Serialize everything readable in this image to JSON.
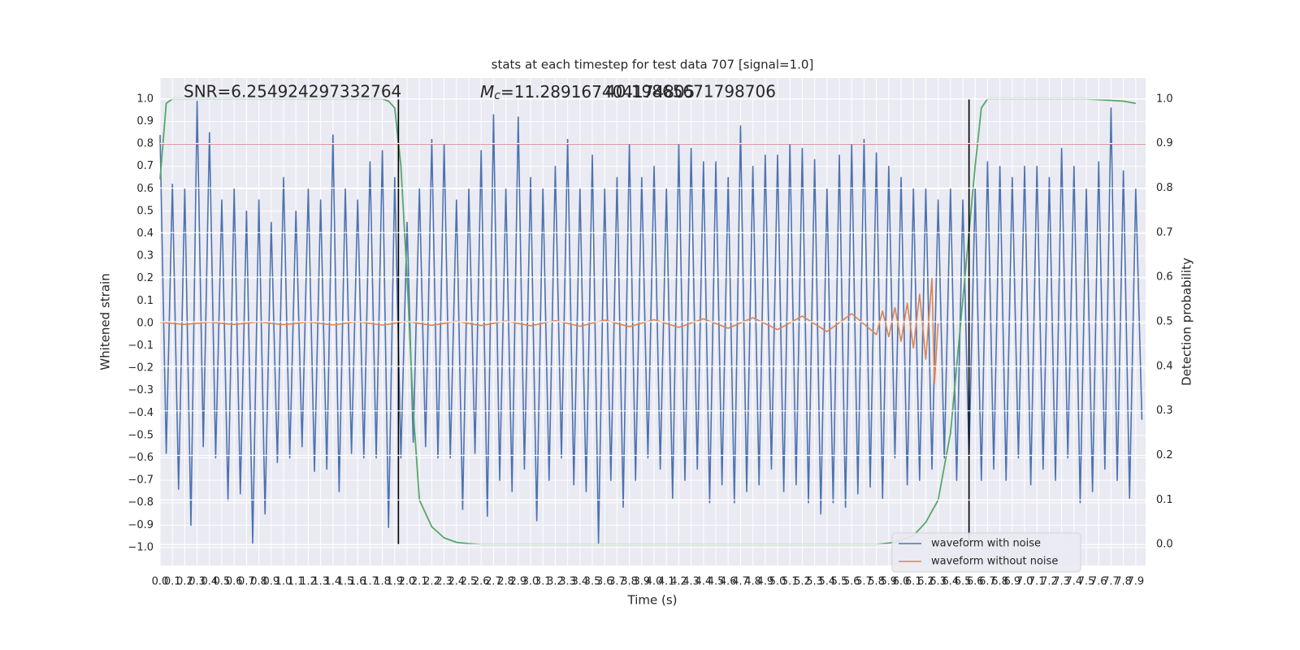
{
  "chart_data": {
    "type": "line",
    "title": "stats at each timestep for test data 707 [signal=1.0]",
    "xlabel": "Time (s)",
    "ylabel": "Whitened strain",
    "y2label": "Detection probability",
    "grid": true,
    "legend": "lower right",
    "annotations": [
      {
        "text": "SNR=6.254924297332764"
      },
      {
        "symbol": "M",
        "subscript": "c",
        "text": "=11.289167404174805"
      },
      {
        "text": "40.19865671798706"
      }
    ],
    "xlim": [
      0,
      7.98
    ],
    "ylim": [
      -1.08,
      1.094
    ],
    "y2lim": [
      -0.047,
      1.047
    ],
    "xticks": [
      {
        "value": 0,
        "label": "0.0"
      },
      0.1,
      0.2,
      0.3,
      0.4,
      0.5,
      0.6,
      0.7,
      0.8,
      0.9,
      {
        "value": 1,
        "label": "1.0"
      },
      1.1,
      1.2,
      1.3,
      1.4,
      1.5,
      1.6,
      1.7,
      1.8,
      1.9,
      {
        "value": 2,
        "label": "2.0"
      },
      2.1,
      2.2,
      2.3,
      2.4,
      2.5,
      2.6,
      2.7,
      2.8,
      2.9,
      {
        "value": 3,
        "label": "3.0"
      },
      3.1,
      3.2,
      3.3,
      3.4,
      3.5,
      3.6,
      3.7,
      3.8,
      3.9,
      {
        "value": 4,
        "label": "4.0"
      },
      4.1,
      4.2,
      4.3,
      4.4,
      4.5,
      4.6,
      4.7,
      4.8,
      4.9,
      {
        "value": 5,
        "label": "5.0"
      },
      5.1,
      5.2,
      5.3,
      5.4,
      5.5,
      5.6,
      5.7,
      5.8,
      5.9,
      {
        "value": 6,
        "label": "6.0"
      },
      6.1,
      6.2,
      6.3,
      6.4,
      6.5,
      6.6,
      6.7,
      6.8,
      6.9,
      {
        "value": 7,
        "label": "7.0"
      },
      7.1,
      7.2,
      7.3,
      7.4,
      7.5,
      7.6,
      7.7,
      7.8,
      7.9
    ],
    "yticks": [
      {
        "value": -1,
        "label": "−1.0"
      },
      {
        "value": -0.9,
        "label": "−0.9"
      },
      {
        "value": -0.8,
        "label": "−0.8"
      },
      {
        "value": -0.7,
        "label": "−0.7"
      },
      {
        "value": -0.6,
        "label": "−0.6"
      },
      {
        "value": -0.5,
        "label": "−0.5"
      },
      {
        "value": -0.4,
        "label": "−0.4"
      },
      {
        "value": -0.3,
        "label": "−0.3"
      },
      {
        "value": -0.2,
        "label": "−0.2"
      },
      {
        "value": -0.1,
        "label": "−0.1"
      },
      {
        "value": 0,
        "label": "0.0"
      },
      0.1,
      0.2,
      0.3,
      0.4,
      0.5,
      0.6,
      0.7,
      0.8,
      0.9,
      {
        "value": 1,
        "label": "1.0"
      }
    ],
    "y2ticks": [
      {
        "value": 0,
        "label": "0.0"
      },
      0.1,
      0.2,
      0.3,
      0.4,
      0.5,
      0.6,
      0.7,
      0.8,
      0.9,
      {
        "value": 1,
        "label": "1.0"
      }
    ],
    "series": [
      {
        "name": "waveform with noise",
        "color": "#4c72b0",
        "x": [
          0,
          0.05,
          0.1,
          0.15,
          0.2,
          0.25,
          0.3,
          0.35,
          0.4,
          0.45,
          0.5,
          0.55,
          0.6,
          0.65,
          0.7,
          0.75,
          0.8,
          0.85,
          0.9,
          0.95,
          1,
          1.05,
          1.1,
          1.15,
          1.2,
          1.25,
          1.3,
          1.35,
          1.4,
          1.45,
          1.5,
          1.55,
          1.6,
          1.65,
          1.7,
          1.75,
          1.8,
          1.85,
          1.9,
          1.95,
          2,
          2.05,
          2.1,
          2.15,
          2.2,
          2.25,
          2.3,
          2.35,
          2.4,
          2.45,
          2.5,
          2.55,
          2.6,
          2.65,
          2.7,
          2.75,
          2.8,
          2.85,
          2.9,
          2.95,
          3,
          3.05,
          3.1,
          3.15,
          3.2,
          3.25,
          3.3,
          3.35,
          3.4,
          3.45,
          3.5,
          3.55,
          3.6,
          3.65,
          3.7,
          3.75,
          3.8,
          3.85,
          3.9,
          3.95,
          4,
          4.05,
          4.1,
          4.15,
          4.2,
          4.25,
          4.3,
          4.35,
          4.4,
          4.45,
          4.5,
          4.55,
          4.6,
          4.65,
          4.7,
          4.75,
          4.8,
          4.85,
          4.9,
          4.95,
          5,
          5.05,
          5.1,
          5.15,
          5.2,
          5.25,
          5.3,
          5.35,
          5.4,
          5.45,
          5.5,
          5.55,
          5.6,
          5.65,
          5.7,
          5.75,
          5.8,
          5.85,
          5.9,
          5.95,
          6,
          6.05,
          6.1,
          6.15,
          6.2,
          6.25,
          6.3,
          6.35,
          6.4,
          6.45,
          6.5,
          6.55,
          6.6,
          6.65,
          6.7,
          6.75,
          6.8,
          6.85,
          6.9,
          6.95,
          7,
          7.05,
          7.1,
          7.15,
          7.2,
          7.25,
          7.3,
          7.35,
          7.4,
          7.45,
          7.5,
          7.55,
          7.6,
          7.65,
          7.7,
          7.75,
          7.8,
          7.85,
          7.9,
          7.95
        ],
        "values": [
          0.84,
          -0.58,
          0.62,
          -0.74,
          0.6,
          -0.9,
          0.99,
          -0.55,
          0.85,
          -0.6,
          0.55,
          -0.79,
          0.6,
          -0.76,
          0.5,
          -0.98,
          0.55,
          -0.85,
          0.45,
          -0.62,
          0.65,
          -0.6,
          0.5,
          -0.55,
          0.6,
          -0.66,
          0.55,
          -0.65,
          0.84,
          -0.75,
          0.6,
          -0.58,
          0.55,
          -0.6,
          0.72,
          -0.6,
          0.77,
          -0.91,
          0.65,
          -0.6,
          0.45,
          -0.53,
          0.6,
          -0.55,
          0.82,
          -0.6,
          0.8,
          -0.6,
          0.55,
          -0.83,
          0.6,
          -0.58,
          0.77,
          -0.86,
          0.93,
          -0.7,
          0.6,
          -0.75,
          0.92,
          -0.65,
          0.65,
          -0.88,
          0.6,
          -0.7,
          0.7,
          -0.6,
          0.82,
          -0.72,
          0.6,
          -0.75,
          0.75,
          -0.98,
          0.6,
          -0.7,
          0.65,
          -0.82,
          0.8,
          -0.7,
          0.65,
          -0.6,
          0.7,
          -0.65,
          0.6,
          -0.78,
          0.8,
          -0.7,
          0.78,
          -0.65,
          0.72,
          -0.8,
          0.72,
          -0.72,
          0.65,
          -0.8,
          0.88,
          -0.75,
          0.7,
          -0.72,
          0.75,
          -0.65,
          0.75,
          -0.75,
          0.8,
          -0.72,
          0.78,
          -0.8,
          0.73,
          -0.85,
          0.6,
          -0.8,
          0.75,
          -0.82,
          0.8,
          -0.76,
          0.82,
          -0.73,
          0.76,
          -0.78,
          0.7,
          -0.6,
          0.65,
          -0.72,
          0.6,
          -0.7,
          0.6,
          -0.65,
          0.55,
          -0.6,
          0.6,
          -0.7,
          0.55,
          -0.6,
          0.6,
          -0.7,
          0.72,
          -0.65,
          0.7,
          -0.7,
          0.65,
          -0.6,
          0.7,
          -0.72,
          0.7,
          -0.65,
          0.65,
          -0.7,
          0.78,
          -0.6,
          0.7,
          -0.8,
          0.6,
          -0.75,
          0.72,
          -0.65,
          0.96,
          -0.7,
          0.68,
          -0.78,
          0.6,
          -0.43
        ]
      },
      {
        "name": "waveform without noise",
        "color": "#dd8452",
        "x": [
          0,
          0.2,
          0.4,
          0.6,
          0.8,
          1,
          1.2,
          1.4,
          1.6,
          1.8,
          2,
          2.2,
          2.4,
          2.6,
          2.8,
          3,
          3.2,
          3.4,
          3.6,
          3.8,
          4,
          4.2,
          4.4,
          4.6,
          4.8,
          5,
          5.2,
          5.4,
          5.6,
          5.8,
          5.85,
          5.9,
          5.95,
          6,
          6.05,
          6.1,
          6.15,
          6.2,
          6.25,
          6.27,
          6.3
        ],
        "values": [
          0.005,
          -0.005,
          0.005,
          -0.005,
          0.006,
          -0.006,
          0.006,
          -0.007,
          0.007,
          -0.008,
          0.008,
          -0.009,
          0.009,
          -0.01,
          0.01,
          -0.011,
          0.012,
          -0.013,
          0.014,
          -0.015,
          0.016,
          -0.018,
          0.02,
          -0.022,
          0.025,
          -0.028,
          0.032,
          -0.037,
          0.043,
          -0.05,
          0.055,
          -0.06,
          0.07,
          -0.08,
          0.09,
          -0.11,
          0.13,
          -0.16,
          0.2,
          -0.27,
          0
        ]
      }
    ],
    "probability": {
      "color": "#55a868",
      "axis": "y2",
      "x": [
        0,
        0.05,
        0.1,
        0.3,
        0.6,
        1,
        1.5,
        1.8,
        1.85,
        1.9,
        1.95,
        2,
        2.05,
        2.1,
        2.2,
        2.3,
        2.4,
        2.5,
        2.6,
        3,
        4,
        5,
        5.8,
        5.95,
        6.1,
        6.2,
        6.3,
        6.4,
        6.5,
        6.6,
        6.65,
        6.7,
        7,
        7.5,
        7.8,
        7.9
      ],
      "values": [
        0.82,
        0.99,
        1,
        1,
        1,
        1,
        1,
        1,
        0.995,
        0.98,
        0.85,
        0.6,
        0.3,
        0.1,
        0.04,
        0.015,
        0.005,
        0.002,
        0,
        0,
        0,
        0,
        0,
        0.005,
        0.02,
        0.05,
        0.1,
        0.25,
        0.55,
        0.85,
        0.98,
        1,
        1,
        1,
        0.995,
        0.99
      ]
    },
    "threshold": {
      "value": 0.8,
      "color": "#c44e52"
    },
    "vlines": {
      "x": [
        1.93,
        6.55
      ],
      "y2range": [
        0,
        1
      ],
      "color": "#000000"
    }
  }
}
